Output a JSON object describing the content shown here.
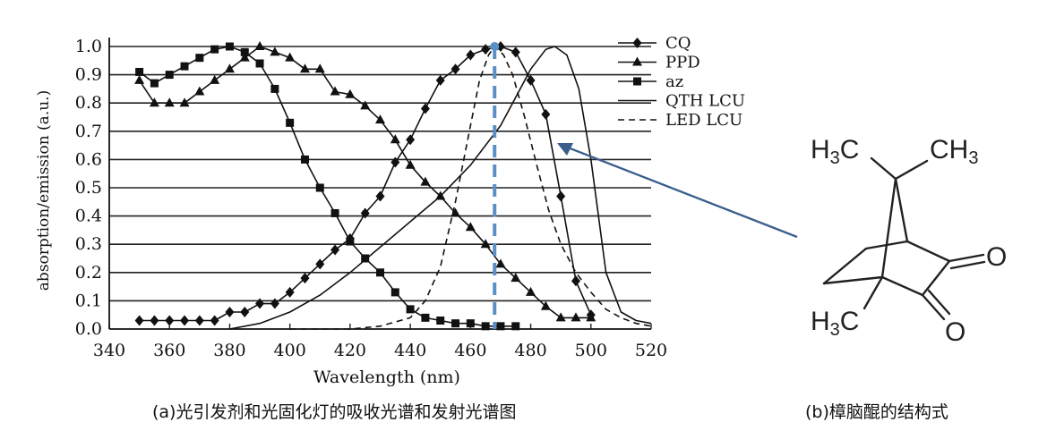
{
  "chart_data": {
    "type": "line",
    "xlabel": "Wavelength (nm)",
    "ylabel": "absorption/emission (a.u.)",
    "xlim": [
      340,
      520
    ],
    "ylim": [
      0,
      1.0
    ],
    "x_ticks": [
      "340",
      "360",
      "380",
      "400",
      "420",
      "440",
      "460",
      "480",
      "500",
      "520"
    ],
    "y_ticks": [
      "0.0",
      "0.1",
      "0.2",
      "0.3",
      "0.4",
      "0.5",
      "0.6",
      "0.7",
      "0.8",
      "0.9",
      "1.0"
    ],
    "grid": "horizontal",
    "legend_position": "top-right",
    "series": [
      {
        "name": "CQ",
        "marker": "diamond",
        "line": "solid",
        "x": [
          350,
          355,
          360,
          365,
          370,
          375,
          380,
          385,
          390,
          395,
          400,
          405,
          410,
          415,
          420,
          425,
          430,
          435,
          440,
          445,
          450,
          455,
          460,
          465,
          470,
          475,
          480,
          485,
          490,
          495,
          500
        ],
        "y": [
          0.03,
          0.03,
          0.03,
          0.03,
          0.03,
          0.03,
          0.06,
          0.06,
          0.09,
          0.09,
          0.13,
          0.18,
          0.23,
          0.28,
          0.32,
          0.41,
          0.47,
          0.59,
          0.67,
          0.78,
          0.88,
          0.92,
          0.97,
          0.99,
          1.0,
          0.98,
          0.88,
          0.76,
          0.47,
          0.17,
          0.05
        ]
      },
      {
        "name": "PPD",
        "marker": "triangle",
        "line": "solid",
        "x": [
          350,
          355,
          360,
          365,
          370,
          375,
          380,
          385,
          390,
          395,
          400,
          405,
          410,
          415,
          420,
          425,
          430,
          435,
          440,
          445,
          450,
          455,
          460,
          465,
          470,
          475,
          480,
          485,
          490,
          495,
          500
        ],
        "y": [
          0.88,
          0.8,
          0.8,
          0.8,
          0.84,
          0.88,
          0.92,
          0.96,
          1.0,
          0.98,
          0.96,
          0.92,
          0.92,
          0.84,
          0.83,
          0.79,
          0.74,
          0.67,
          0.58,
          0.52,
          0.47,
          0.41,
          0.36,
          0.3,
          0.23,
          0.18,
          0.13,
          0.08,
          0.04,
          0.04,
          0.04
        ]
      },
      {
        "name": "az",
        "marker": "square",
        "line": "solid",
        "x": [
          350,
          355,
          360,
          365,
          370,
          375,
          380,
          385,
          390,
          395,
          400,
          405,
          410,
          415,
          420,
          425,
          430,
          435,
          440,
          445,
          450,
          455,
          460,
          465,
          470,
          475
        ],
        "y": [
          0.91,
          0.87,
          0.9,
          0.93,
          0.96,
          0.99,
          1.0,
          0.98,
          0.94,
          0.85,
          0.73,
          0.6,
          0.5,
          0.41,
          0.31,
          0.25,
          0.2,
          0.13,
          0.07,
          0.04,
          0.03,
          0.02,
          0.02,
          0.01,
          0.01,
          0.01
        ]
      },
      {
        "name": "QTH LCU",
        "marker": "none",
        "line": "solid",
        "x": [
          380,
          390,
          400,
          410,
          420,
          430,
          440,
          450,
          460,
          470,
          475,
          480,
          485,
          488,
          492,
          496,
          500,
          505,
          510,
          515,
          520
        ],
        "y": [
          0.0,
          0.02,
          0.06,
          0.12,
          0.2,
          0.29,
          0.38,
          0.47,
          0.58,
          0.72,
          0.82,
          0.92,
          0.99,
          1.0,
          0.97,
          0.85,
          0.6,
          0.2,
          0.06,
          0.03,
          0.02
        ]
      },
      {
        "name": "LED LCU",
        "marker": "none",
        "line": "dashed",
        "x": [
          400,
          420,
          430,
          440,
          445,
          450,
          455,
          460,
          463,
          466,
          468,
          471,
          474,
          478,
          482,
          486,
          490,
          495,
          500,
          505,
          510,
          515,
          520
        ],
        "y": [
          0.0,
          0.0,
          0.01,
          0.04,
          0.1,
          0.22,
          0.45,
          0.72,
          0.88,
          0.97,
          1.0,
          0.97,
          0.9,
          0.75,
          0.58,
          0.42,
          0.3,
          0.2,
          0.13,
          0.07,
          0.04,
          0.02,
          0.01
        ]
      }
    ],
    "highlight_line_x": 468,
    "highlight_color": "#5b8fc7",
    "arrow_color": "#3a5f8c"
  },
  "captions": {
    "a": "(a)光引发剂和光固化灯的吸收光谱和发射光谱图",
    "b": "(b)樟脑醌的结构式"
  },
  "molecule": {
    "h3c_top": "H3C",
    "ch3_top": "CH3",
    "h3c_bottom": "H3C",
    "o_top": "O",
    "o_bottom": "O"
  }
}
